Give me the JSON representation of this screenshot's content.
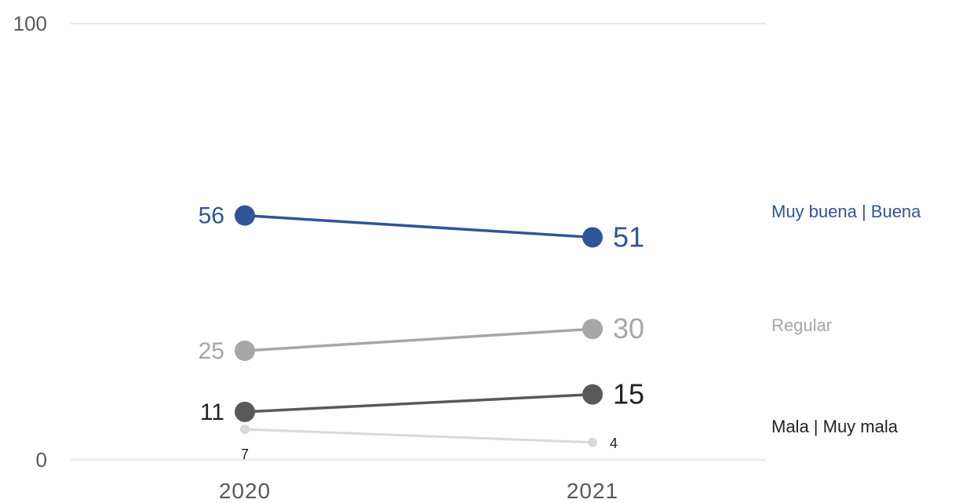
{
  "chart_data": {
    "type": "line",
    "categories": [
      "2020",
      "2021"
    ],
    "ylim": [
      0,
      100
    ],
    "y_ticks": [
      "0",
      "100"
    ],
    "grid": "horizontal at 0 and 100",
    "legend": "right, direct labels",
    "series": [
      {
        "name": "Muy buena | Buena",
        "values": [
          56,
          51
        ],
        "value_labels": [
          "56",
          "51"
        ],
        "color": "#2f5597",
        "label_color": "#2f5597",
        "size": "large"
      },
      {
        "name": "Regular",
        "values": [
          25,
          30
        ],
        "value_labels": [
          "25",
          "30"
        ],
        "color": "#a6a6a6",
        "label_color": "#a6a6a6",
        "size": "large"
      },
      {
        "name": "Mala | Muy mala",
        "values": [
          11,
          15
        ],
        "value_labels": [
          "11",
          "15"
        ],
        "color": "#595959",
        "label_color": "#222222",
        "size": "large"
      },
      {
        "name": "",
        "values": [
          7,
          4
        ],
        "value_labels": [
          "7",
          "4"
        ],
        "color": "#d9d9d9",
        "label_color": "#222222",
        "size": "small"
      }
    ]
  }
}
